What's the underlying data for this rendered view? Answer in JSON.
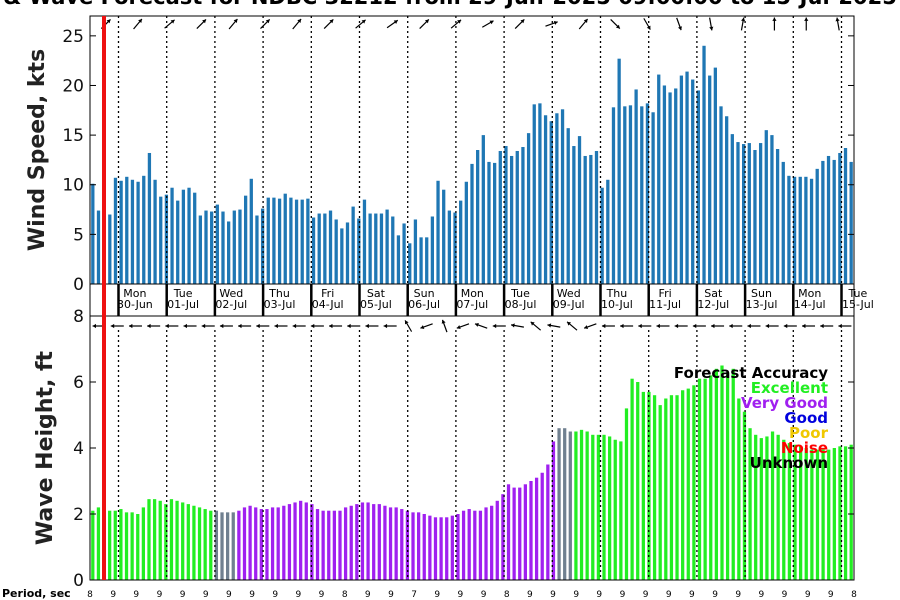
{
  "title": "& Wave Forecast for NDBC 32212 from 29-Jun-2025 09:00:00 to 15-Jul-2025",
  "colors": {
    "wind_bar": "#1f77b4",
    "excellent": "#22ee22",
    "very_good": "#a020f0",
    "good": "#0000dd",
    "poor": "#f0c800",
    "noise": "#ff0000",
    "unknown": "#000000",
    "gray": "#708090",
    "now_line": "#ee1111"
  },
  "chart_data": [
    {
      "type": "bar",
      "ylabel": "Wind Speed, kts",
      "ylim": [
        0,
        27
      ],
      "yticks": [
        0,
        5,
        10,
        15,
        20,
        25
      ],
      "grid": "dotted vertical day separators",
      "values": [
        10.1,
        7.4,
        0,
        7.0,
        10.7,
        10.4,
        10.8,
        10.5,
        10.3,
        10.9,
        13.2,
        10.5,
        8.8,
        9.0,
        9.7,
        8.4,
        9.5,
        9.7,
        9.2,
        6.9,
        7.4,
        7.3,
        8.0,
        7.3,
        6.3,
        7.4,
        7.5,
        8.9,
        10.6,
        6.9,
        7.6,
        8.7,
        8.7,
        8.6,
        9.1,
        8.7,
        8.5,
        8.5,
        8.6,
        6.7,
        7.1,
        7.1,
        7.4,
        6.5,
        5.6,
        6.2,
        7.8,
        6.6,
        8.5,
        7.1,
        7.1,
        7.1,
        7.5,
        6.8,
        4.9,
        6.1,
        4.1,
        6.5,
        4.7,
        4.7,
        6.8,
        10.4,
        9.5,
        7.4,
        7.2,
        8.4,
        10.3,
        12.1,
        13.5,
        15.0,
        12.3,
        12.2,
        13.4,
        13.9,
        12.9,
        13.4,
        13.8,
        15.2,
        18.1,
        18.2,
        17.0,
        16.4,
        17.2,
        17.6,
        15.7,
        13.9,
        14.9,
        12.9,
        13.0,
        13.4,
        9.7,
        10.5,
        17.8,
        22.7,
        17.9,
        18.0,
        19.6,
        17.9,
        18.2,
        17.3,
        21.1,
        20.0,
        19.3,
        19.7,
        21.0,
        21.4,
        20.6,
        19.5,
        24.0,
        21.0,
        21.8,
        17.9,
        16.9,
        15.1,
        14.3,
        14.1,
        14.2,
        13.5,
        14.2,
        15.5,
        15.0,
        13.6,
        12.3,
        10.9,
        10.8,
        10.8,
        10.8,
        10.6,
        11.6,
        12.4,
        12.9,
        12.5,
        13.2,
        13.7,
        12.3
      ]
    },
    {
      "type": "bar",
      "ylabel": "Wave Height, ft",
      "ylim": [
        0,
        8
      ],
      "yticks": [
        0,
        2,
        4,
        6,
        8
      ],
      "values": [
        2.1,
        2.2,
        2.2,
        2.1,
        2.1,
        2.15,
        2.05,
        2.05,
        2.0,
        2.2,
        2.45,
        2.45,
        2.4,
        2.3,
        2.45,
        2.4,
        2.35,
        2.3,
        2.25,
        2.2,
        2.15,
        2.1,
        2.1,
        2.05,
        2.05,
        2.05,
        2.1,
        2.2,
        2.25,
        2.2,
        2.15,
        2.15,
        2.2,
        2.2,
        2.25,
        2.3,
        2.35,
        2.4,
        2.35,
        2.3,
        2.15,
        2.1,
        2.1,
        2.1,
        2.1,
        2.2,
        2.25,
        2.3,
        2.35,
        2.35,
        2.3,
        2.3,
        2.25,
        2.2,
        2.2,
        2.15,
        2.1,
        2.05,
        2.05,
        2.0,
        1.95,
        1.9,
        1.9,
        1.9,
        1.95,
        2.0,
        2.1,
        2.15,
        2.1,
        2.1,
        2.2,
        2.25,
        2.4,
        2.6,
        2.9,
        2.8,
        2.8,
        2.9,
        3.0,
        3.1,
        3.25,
        3.5,
        4.2,
        4.6,
        4.6,
        4.5,
        4.5,
        4.55,
        4.5,
        4.4,
        4.4,
        4.4,
        4.35,
        4.25,
        4.2,
        5.2,
        6.1,
        6.0,
        5.7,
        5.7,
        5.6,
        5.3,
        5.5,
        5.6,
        5.6,
        5.75,
        5.8,
        5.9,
        6.1,
        6.1,
        6.2,
        6.4,
        6.5,
        6.3,
        6.4,
        5.5,
        5.1,
        4.6,
        4.4,
        4.3,
        4.35,
        4.5,
        4.4,
        4.25,
        4.15,
        4.1,
        4.05,
        4.0,
        3.95,
        3.95,
        3.95,
        3.95,
        4.0,
        4.05,
        4.05,
        4.1
      ],
      "accuracy": [
        "E",
        "E",
        "E",
        "E",
        "E",
        "E",
        "E",
        "E",
        "E",
        "E",
        "E",
        "E",
        "E",
        "E",
        "E",
        "E",
        "E",
        "E",
        "E",
        "E",
        "E",
        "E",
        "G",
        "G",
        "G",
        "G",
        "V",
        "V",
        "V",
        "V",
        "V",
        "V",
        "V",
        "V",
        "V",
        "V",
        "V",
        "V",
        "V",
        "V",
        "V",
        "V",
        "V",
        "V",
        "V",
        "V",
        "V",
        "V",
        "V",
        "V",
        "V",
        "V",
        "V",
        "V",
        "V",
        "V",
        "V",
        "V",
        "V",
        "V",
        "V",
        "V",
        "V",
        "V",
        "V",
        "V",
        "V",
        "V",
        "V",
        "V",
        "V",
        "V",
        "V",
        "V",
        "V",
        "V",
        "V",
        "V",
        "V",
        "V",
        "V",
        "V",
        "V",
        "G",
        "G",
        "G",
        "E",
        "E",
        "E",
        "E",
        "E",
        "E",
        "E",
        "E",
        "E",
        "E",
        "E",
        "E",
        "E",
        "E",
        "E",
        "E",
        "E",
        "E",
        "E",
        "E",
        "E",
        "E",
        "E",
        "E",
        "E",
        "E",
        "E",
        "E",
        "E",
        "E",
        "E",
        "E",
        "E",
        "E",
        "E",
        "E",
        "E",
        "E",
        "E",
        "E",
        "E",
        "E",
        "E",
        "E",
        "E",
        "E",
        "E",
        "E",
        "E",
        "E"
      ]
    }
  ],
  "days": [
    {
      "dow": "Mon",
      "date": "30-Jun"
    },
    {
      "dow": "Tue",
      "date": "01-Jul"
    },
    {
      "dow": "Wed",
      "date": "02-Jul"
    },
    {
      "dow": "Thu",
      "date": "03-Jul"
    },
    {
      "dow": "Fri",
      "date": "04-Jul"
    },
    {
      "dow": "Sat",
      "date": "05-Jul"
    },
    {
      "dow": "Sun",
      "date": "06-Jul"
    },
    {
      "dow": "Mon",
      "date": "07-Jul"
    },
    {
      "dow": "Tue",
      "date": "08-Jul"
    },
    {
      "dow": "Wed",
      "date": "09-Jul"
    },
    {
      "dow": "Thu",
      "date": "10-Jul"
    },
    {
      "dow": "Fri",
      "date": "11-Jul"
    },
    {
      "dow": "Sat",
      "date": "12-Jul"
    },
    {
      "dow": "Sun",
      "date": "13-Jul"
    },
    {
      "dow": "Mon",
      "date": "14-Jul"
    },
    {
      "dow": "Tue",
      "date": "15-Jul"
    }
  ],
  "wind_dirs": [
    45,
    50,
    40,
    45,
    50,
    45,
    50,
    45,
    40,
    35,
    45,
    40,
    30,
    45,
    20,
    50,
    -45,
    -60,
    -70,
    -80,
    80,
    90,
    90,
    100
  ],
  "wave_dirs": [
    180,
    180,
    180,
    180,
    180,
    180,
    180,
    180,
    180,
    180,
    180,
    180,
    180,
    180,
    180,
    180,
    180,
    120,
    200,
    110,
    200,
    160,
    180,
    170,
    140,
    170,
    140,
    200,
    180,
    180,
    180,
    180,
    180,
    180,
    180,
    180,
    180,
    180,
    180,
    180,
    180,
    180
  ],
  "period_label": "Period, sec",
  "periods": [
    "8",
    "9",
    "9",
    "9",
    "9",
    "9",
    "9",
    "9",
    "9",
    "9",
    "9",
    "8",
    "9",
    "9",
    "7",
    "9",
    "9",
    "9",
    "8",
    "9",
    "9",
    "9",
    "9",
    "9",
    "9",
    "9",
    "9",
    "9",
    "9",
    "9",
    "9",
    "9",
    "9",
    "8"
  ],
  "legend": {
    "title": "Forecast Accuracy",
    "items": [
      {
        "label": "Excellent",
        "color": "#22ee22"
      },
      {
        "label": "Very Good",
        "color": "#a020f0"
      },
      {
        "label": "Good",
        "color": "#0000dd"
      },
      {
        "label": "Poor",
        "color": "#f0c800"
      },
      {
        "label": "Noise",
        "color": "#ff0000"
      },
      {
        "label": "Unknown",
        "color": "#000000"
      }
    ]
  }
}
